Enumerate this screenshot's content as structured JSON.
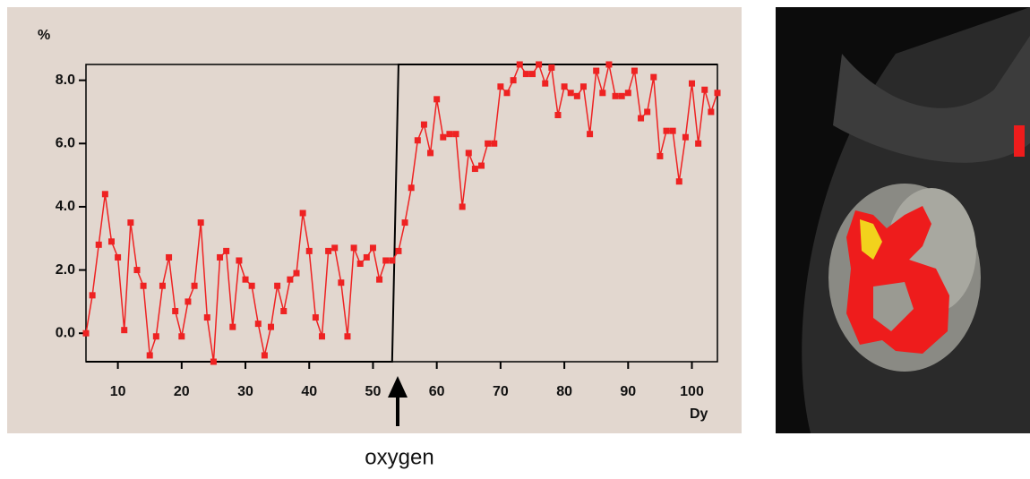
{
  "chart_data": {
    "type": "line",
    "x": [
      5,
      6,
      7,
      8,
      9,
      10,
      11,
      12,
      13,
      14,
      15,
      16,
      17,
      18,
      19,
      20,
      21,
      22,
      23,
      24,
      25,
      26,
      27,
      28,
      29,
      30,
      31,
      32,
      33,
      34,
      35,
      36,
      37,
      38,
      39,
      40,
      41,
      42,
      43,
      44,
      45,
      46,
      47,
      48,
      49,
      50,
      51,
      52,
      53,
      54,
      55,
      56,
      57,
      58,
      59,
      60,
      61,
      62,
      63,
      64,
      65,
      66,
      67,
      68,
      69,
      70,
      71,
      72,
      73,
      74,
      75,
      76,
      77,
      78,
      79,
      80,
      81,
      82,
      83,
      84,
      85,
      86,
      87,
      88,
      89,
      90,
      91,
      92,
      93,
      94,
      95,
      96,
      97,
      98,
      99,
      100,
      101,
      102,
      103,
      104
    ],
    "series": [
      {
        "color": "#ee2222",
        "values": [
          0.0,
          1.2,
          2.8,
          4.4,
          2.9,
          2.4,
          0.1,
          3.5,
          2.0,
          1.5,
          -0.7,
          -0.1,
          1.5,
          2.4,
          0.7,
          -0.1,
          1.0,
          1.5,
          3.5,
          0.5,
          -0.9,
          2.4,
          2.6,
          0.2,
          2.3,
          1.7,
          1.5,
          0.3,
          -0.7,
          0.2,
          1.5,
          0.7,
          1.7,
          1.9,
          3.8,
          2.6,
          0.5,
          -0.1,
          2.6,
          2.7,
          1.6,
          -0.1,
          2.7,
          2.2,
          2.4,
          2.7,
          1.7,
          2.3,
          2.3,
          2.6,
          3.5,
          4.6,
          6.1,
          6.6,
          5.7,
          7.4,
          6.2,
          6.3,
          6.3,
          4.0,
          5.7,
          5.2,
          5.3,
          6.0,
          6.0,
          7.8,
          7.6,
          8.0,
          8.5,
          8.2,
          8.2,
          8.5,
          7.9,
          8.4,
          6.9,
          7.8,
          7.6,
          7.5,
          7.8,
          6.3,
          8.3,
          7.6,
          8.5,
          7.5,
          7.5,
          7.6,
          8.3,
          6.8,
          7.0,
          8.1,
          5.6,
          6.4,
          6.4,
          4.8,
          6.2,
          7.9,
          6.0,
          7.7,
          7.0,
          7.6
        ]
      }
    ],
    "step": {
      "color": "#000000",
      "x": [
        5,
        53,
        54,
        104
      ],
      "values": [
        -0.9,
        -0.9,
        8.5,
        8.5
      ]
    },
    "xlim": [
      5,
      104
    ],
    "ylim": [
      -0.9,
      8.5
    ],
    "xticks": [
      10,
      20,
      30,
      40,
      50,
      60,
      70,
      80,
      90,
      100
    ],
    "yticks": [
      {
        "value": 0,
        "label": "0.0"
      },
      {
        "value": 2,
        "label": "2.0"
      },
      {
        "value": 4,
        "label": "4.0"
      },
      {
        "value": 6,
        "label": "6.0"
      },
      {
        "value": 8,
        "label": "8.0"
      }
    ],
    "y_label": "%",
    "x_label": "Dy",
    "annotation": "oxygen"
  }
}
